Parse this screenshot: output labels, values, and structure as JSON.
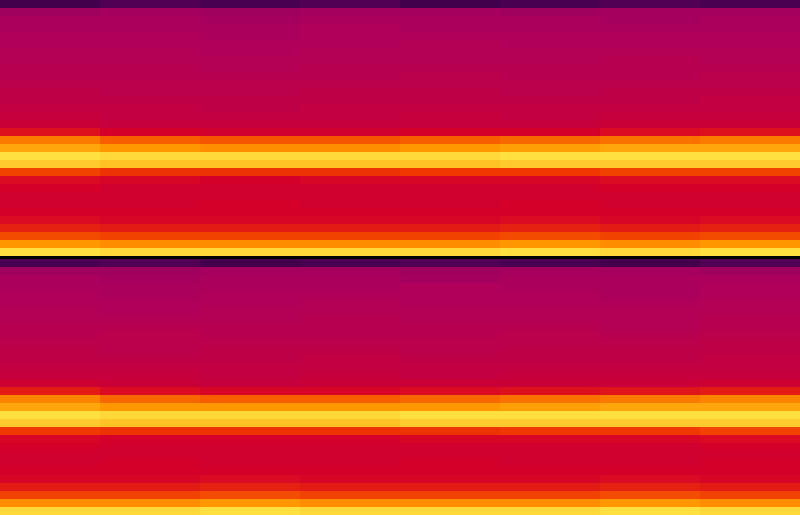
{
  "chart_data": {
    "type": "heatmap",
    "tick_labels": false,
    "zlim": [
      -100,
      0
    ],
    "series": [
      {
        "values": [
          [
            -82,
            -80,
            -81,
            -80,
            -82,
            -81,
            -80,
            -81
          ],
          [
            -68,
            -67,
            -68,
            -67,
            -67,
            -68,
            -67,
            -67
          ],
          [
            -66,
            -66,
            -67,
            -66,
            -66,
            -66,
            -67,
            -66
          ],
          [
            -66,
            -66,
            -66,
            -65,
            -66,
            -66,
            -66,
            -66
          ],
          [
            -65,
            -65,
            -66,
            -65,
            -65,
            -65,
            -65,
            -65
          ],
          [
            -65,
            -65,
            -65,
            -65,
            -64,
            -65,
            -65,
            -65
          ],
          [
            -64,
            -64,
            -65,
            -64,
            -64,
            -64,
            -64,
            -64
          ],
          [
            -64,
            -64,
            -64,
            -64,
            -64,
            -64,
            -63,
            -64
          ],
          [
            -63,
            -63,
            -64,
            -63,
            -63,
            -63,
            -63,
            -63
          ],
          [
            -63,
            -63,
            -63,
            -63,
            -62,
            -63,
            -63,
            -62
          ],
          [
            -62,
            -62,
            -62,
            -62,
            -62,
            -62,
            -62,
            -62
          ],
          [
            -61,
            -62,
            -62,
            -61,
            -61,
            -62,
            -61,
            -61
          ],
          [
            -61,
            -61,
            -61,
            -61,
            -61,
            -61,
            -61,
            -60
          ],
          [
            -60,
            -60,
            -61,
            -60,
            -60,
            -60,
            -60,
            -60
          ],
          [
            -59,
            -60,
            -60,
            -60,
            -59,
            -60,
            -59,
            -59
          ],
          [
            -58,
            -59,
            -59,
            -59,
            -59,
            -59,
            -58,
            -58
          ],
          [
            -52,
            -55,
            -56,
            -56,
            -55,
            -55,
            -53,
            -52
          ],
          [
            -38,
            -41,
            -42,
            -42,
            -41,
            -40,
            -39,
            -38
          ],
          [
            -33,
            -35,
            -36,
            -36,
            -35,
            -34,
            -33,
            -33
          ],
          [
            -25,
            -26,
            -26,
            -26,
            -26,
            -25,
            -25,
            -25
          ],
          [
            -28,
            -29,
            -29,
            -29,
            -29,
            -28,
            -28,
            -28
          ],
          [
            -44,
            -46,
            -46,
            -46,
            -45,
            -45,
            -44,
            -44
          ],
          [
            -53,
            -54,
            -55,
            -54,
            -54,
            -54,
            -53,
            -53
          ],
          [
            -55,
            -56,
            -56,
            -56,
            -56,
            -56,
            -55,
            -55
          ],
          [
            -56,
            -56,
            -56,
            -56,
            -56,
            -56,
            -56,
            -56
          ],
          [
            -56,
            -56,
            -55,
            -56,
            -56,
            -55,
            -56,
            -56
          ],
          [
            -55,
            -55,
            -55,
            -55,
            -55,
            -55,
            -55,
            -55
          ],
          [
            -53,
            -54,
            -54,
            -54,
            -54,
            -53,
            -54,
            -53
          ],
          [
            -49,
            -50,
            -50,
            -50,
            -50,
            -49,
            -50,
            -49
          ],
          [
            -43,
            -44,
            -44,
            -44,
            -44,
            -43,
            -44,
            -43
          ],
          [
            -35,
            -36,
            -36,
            -36,
            -36,
            -35,
            -36,
            -35
          ],
          [
            -25,
            -26,
            -26,
            -26,
            -26,
            -25,
            -26,
            -25
          ]
        ]
      },
      {
        "values": [
          [
            -81,
            -80,
            -82,
            -81,
            -80,
            -81,
            -82,
            -80
          ],
          [
            -68,
            -68,
            -67,
            -67,
            -68,
            -67,
            -67,
            -68
          ],
          [
            -66,
            -67,
            -66,
            -66,
            -67,
            -66,
            -66,
            -66
          ],
          [
            -66,
            -66,
            -66,
            -66,
            -65,
            -66,
            -66,
            -65
          ],
          [
            -65,
            -66,
            -65,
            -65,
            -65,
            -65,
            -66,
            -65
          ],
          [
            -65,
            -65,
            -65,
            -64,
            -65,
            -65,
            -65,
            -64
          ],
          [
            -64,
            -65,
            -64,
            -64,
            -64,
            -64,
            -64,
            -64
          ],
          [
            -64,
            -64,
            -64,
            -63,
            -64,
            -64,
            -64,
            -63
          ],
          [
            -63,
            -63,
            -63,
            -63,
            -63,
            -63,
            -64,
            -63
          ],
          [
            -63,
            -62,
            -63,
            -63,
            -63,
            -62,
            -63,
            -62
          ],
          [
            -62,
            -62,
            -62,
            -62,
            -62,
            -62,
            -62,
            -61
          ],
          [
            -61,
            -62,
            -61,
            -61,
            -62,
            -61,
            -61,
            -61
          ],
          [
            -61,
            -61,
            -61,
            -60,
            -61,
            -61,
            -61,
            -60
          ],
          [
            -60,
            -60,
            -60,
            -60,
            -60,
            -60,
            -60,
            -60
          ],
          [
            -59,
            -59,
            -60,
            -59,
            -60,
            -59,
            -59,
            -59
          ],
          [
            -57,
            -58,
            -59,
            -58,
            -58,
            -58,
            -58,
            -57
          ],
          [
            -50,
            -53,
            -54,
            -54,
            -53,
            -52,
            -51,
            -50
          ],
          [
            -37,
            -40,
            -41,
            -41,
            -40,
            -39,
            -38,
            -37
          ],
          [
            -33,
            -35,
            -35,
            -35,
            -35,
            -34,
            -33,
            -33
          ],
          [
            -25,
            -26,
            -26,
            -26,
            -25,
            -25,
            -25,
            -25
          ],
          [
            -28,
            -29,
            -29,
            -29,
            -28,
            -28,
            -28,
            -28
          ],
          [
            -45,
            -46,
            -46,
            -46,
            -46,
            -45,
            -45,
            -44
          ],
          [
            -54,
            -55,
            -55,
            -55,
            -54,
            -54,
            -54,
            -53
          ],
          [
            -55,
            -56,
            -56,
            -56,
            -56,
            -56,
            -56,
            -55
          ],
          [
            -56,
            -56,
            -56,
            -56,
            -56,
            -56,
            -56,
            -56
          ],
          [
            -56,
            -55,
            -56,
            -56,
            -55,
            -56,
            -56,
            -55
          ],
          [
            -55,
            -55,
            -55,
            -55,
            -55,
            -55,
            -55,
            -55
          ],
          [
            -54,
            -54,
            -53,
            -54,
            -54,
            -54,
            -53,
            -54
          ],
          [
            -50,
            -50,
            -49,
            -50,
            -50,
            -50,
            -49,
            -50
          ],
          [
            -44,
            -44,
            -43,
            -44,
            -44,
            -44,
            -43,
            -44
          ],
          [
            -36,
            -36,
            -35,
            -36,
            -36,
            -36,
            -35,
            -36
          ],
          [
            -26,
            -26,
            -25,
            -26,
            -26,
            -26,
            -25,
            -26
          ]
        ]
      }
    ]
  }
}
